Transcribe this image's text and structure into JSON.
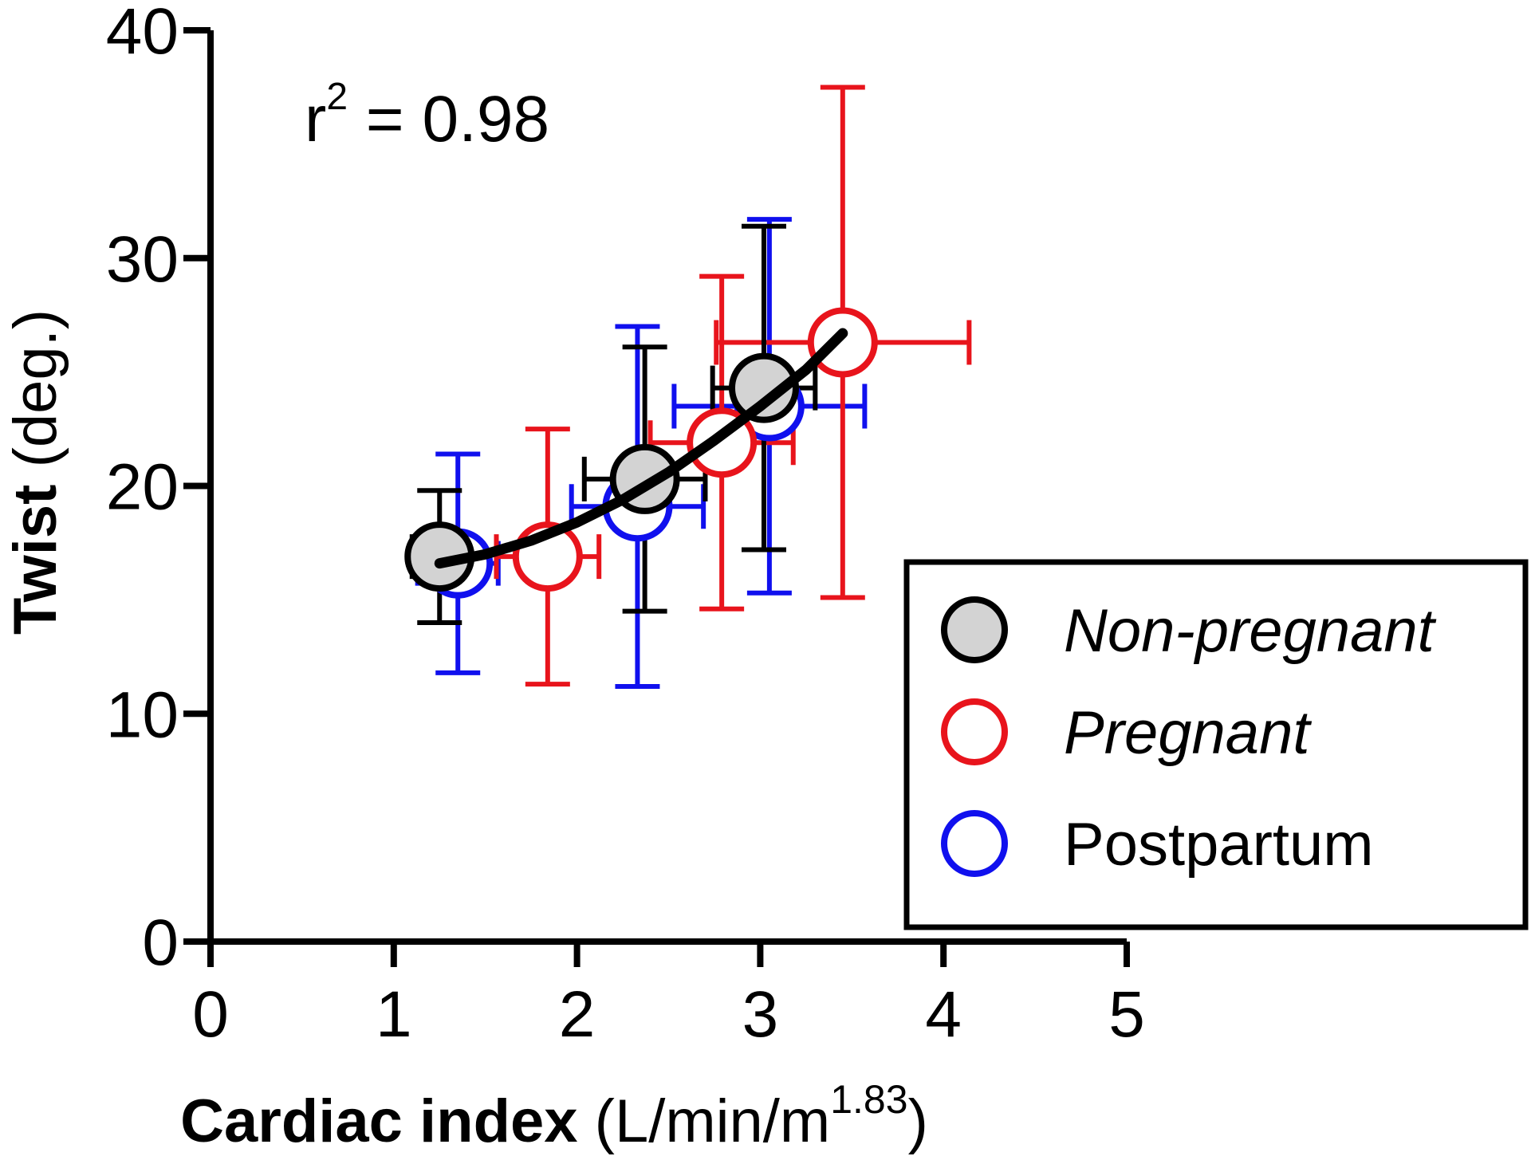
{
  "chart_data": {
    "type": "scatter",
    "title": "",
    "xlabel": {
      "bold": "Cardiac index",
      "units_base": " (L/min/m",
      "units_sup": "1.83",
      "units_close": ")"
    },
    "ylabel": {
      "bold": "Twist",
      "units": " (deg.)"
    },
    "xlim": [
      0,
      5
    ],
    "ylim": [
      0,
      40
    ],
    "xticks": [
      "0",
      "1",
      "2",
      "3",
      "4",
      "5"
    ],
    "yticks": [
      "0",
      "10",
      "20",
      "30",
      "40"
    ],
    "annotation": {
      "base": "r",
      "sup": "2",
      "rest": " = 0.98"
    },
    "legend_position": "bottom-right",
    "series": [
      {
        "name": "Non-pregnant",
        "italic": true,
        "marker": "filled-circle",
        "stroke": "#000000",
        "fill": "#d3d3d3",
        "points": [
          {
            "x": 1.25,
            "y": 16.9,
            "xerr": 0.15,
            "yerr": 2.9
          },
          {
            "x": 2.37,
            "y": 20.3,
            "xerr": 0.33,
            "yerr": 5.8
          },
          {
            "x": 3.02,
            "y": 24.3,
            "xerr": 0.28,
            "yerr": 7.1
          }
        ]
      },
      {
        "name": "Pregnant",
        "italic": true,
        "marker": "open-circle",
        "stroke": "#e8141c",
        "fill": "#ffffff",
        "points": [
          {
            "x": 1.84,
            "y": 16.9,
            "xerr": 0.28,
            "yerr": 5.6
          },
          {
            "x": 2.79,
            "y": 21.9,
            "xerr": 0.39,
            "yerr": 7.3
          },
          {
            "x": 3.45,
            "y": 26.3,
            "xerr": 0.69,
            "yerr": 11.2
          }
        ]
      },
      {
        "name": "Postpartum",
        "italic": false,
        "marker": "open-circle",
        "stroke": "#1010ee",
        "fill": "#ffffff",
        "points": [
          {
            "x": 1.35,
            "y": 16.6,
            "xerr": 0.22,
            "yerr": 4.8
          },
          {
            "x": 2.33,
            "y": 19.1,
            "xerr": 0.36,
            "yerr": 7.9
          },
          {
            "x": 3.05,
            "y": 23.5,
            "xerr": 0.52,
            "yerr": 8.2
          }
        ]
      }
    ],
    "fit_curve": {
      "color": "#000000",
      "points": [
        {
          "x": 1.25,
          "y": 16.6
        },
        {
          "x": 1.5,
          "y": 17.0
        },
        {
          "x": 1.75,
          "y": 17.6
        },
        {
          "x": 2.0,
          "y": 18.4
        },
        {
          "x": 2.25,
          "y": 19.4
        },
        {
          "x": 2.5,
          "y": 20.6
        },
        {
          "x": 2.75,
          "y": 22.0
        },
        {
          "x": 3.0,
          "y": 23.5
        },
        {
          "x": 3.25,
          "y": 25.1
        },
        {
          "x": 3.45,
          "y": 26.7
        }
      ]
    }
  }
}
